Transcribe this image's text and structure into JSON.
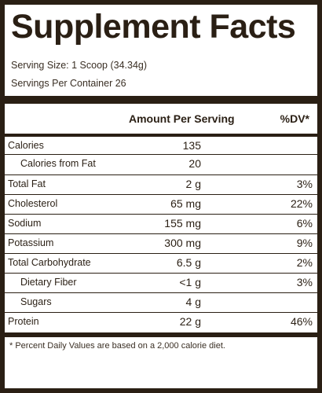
{
  "title": "Supplement Facts",
  "serving_size": "Serving Size: 1 Scoop (34.34g)",
  "servings_per_container": "Servings Per Container 26",
  "header": {
    "amount": "Amount Per Serving",
    "dv": "%DV*"
  },
  "rows": [
    {
      "name": "Calories",
      "amount": "135",
      "dv": ""
    },
    {
      "name": "Calories from Fat",
      "amount": "20",
      "dv": ""
    },
    {
      "name": "Total Fat",
      "amount": "2 g",
      "dv": "3%"
    },
    {
      "name": "Cholesterol",
      "amount": "65 mg",
      "dv": "22%"
    },
    {
      "name": "Sodium",
      "amount": "155 mg",
      "dv": "6%"
    },
    {
      "name": "Potassium",
      "amount": "300 mg",
      "dv": "9%"
    },
    {
      "name": "Total Carbohydrate",
      "amount": "6.5 g",
      "dv": "2%"
    },
    {
      "name": "Dietary Fiber",
      "amount": "<1 g",
      "dv": "3%"
    },
    {
      "name": "Sugars",
      "amount": "4 g",
      "dv": ""
    },
    {
      "name": "Protein",
      "amount": "22 g",
      "dv": "46%"
    }
  ],
  "footnote": "* Percent Daily Values are based on a 2,000 calorie diet.",
  "colors": {
    "ink": "#2a1f14",
    "background": "#ffffff"
  }
}
